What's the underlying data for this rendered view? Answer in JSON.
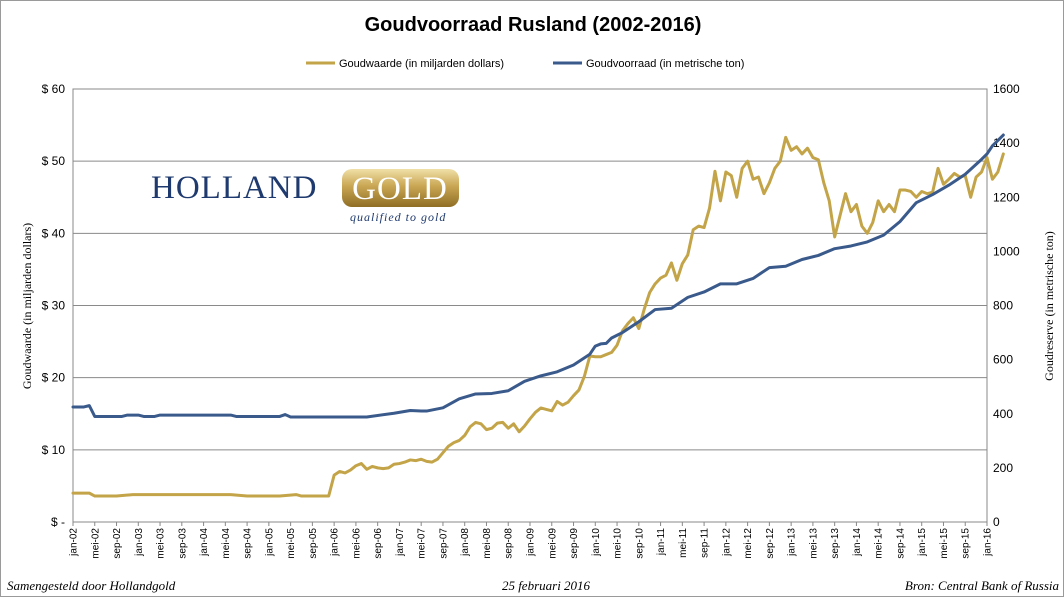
{
  "chart_data": {
    "type": "line",
    "title": "Goudvoorraad Rusland (2002-2016)",
    "ylabel_left": "Goudwaarde  (in miljarden dollars)",
    "ylabel_right": "Goudreserve  (in metrische ton)",
    "ylim_left": [
      0,
      60
    ],
    "ylim_right": [
      0,
      1600
    ],
    "yticks_left": [
      "$ -",
      "$ 10",
      "$ 20",
      "$ 30",
      "$ 40",
      "$ 50",
      "$ 60"
    ],
    "yticks_right": [
      "0",
      "200",
      "400",
      "600",
      "800",
      "1000",
      "1200",
      "1400",
      "1600"
    ],
    "x_start": "2002-01",
    "x_end": "2016-01",
    "x_tick_labels": [
      "jan-02",
      "mei-02",
      "sep-02",
      "jan-03",
      "mei-03",
      "sep-03",
      "jan-04",
      "mei-04",
      "sep-04",
      "jan-05",
      "mei-05",
      "sep-05",
      "jan-06",
      "mei-06",
      "sep-06",
      "jan-07",
      "mei-07",
      "sep-07",
      "jan-08",
      "mei-08",
      "sep-08",
      "jan-09",
      "mei-09",
      "sep-09",
      "jan-10",
      "mei-10",
      "sep-10",
      "jan-11",
      "mei-11",
      "sep-11",
      "jan-12",
      "mei-12",
      "sep-12",
      "jan-13",
      "mei-13",
      "sep-13",
      "jan-14",
      "mei-14",
      "sep-14",
      "jan-15",
      "mei-15",
      "sep-15",
      "jan-16"
    ],
    "grid": true,
    "legend_position": "top",
    "series": [
      {
        "name": "Goudwaarde (in miljarden dollars)",
        "axis": "left",
        "color": "#c3a448",
        "points": [
          [
            "2002-01",
            4.0
          ],
          [
            "2002-04",
            4.0
          ],
          [
            "2002-05",
            3.6
          ],
          [
            "2002-09",
            3.6
          ],
          [
            "2002-12",
            3.8
          ],
          [
            "2003-06",
            3.8
          ],
          [
            "2004-06",
            3.8
          ],
          [
            "2004-09",
            3.6
          ],
          [
            "2005-03",
            3.6
          ],
          [
            "2005-06",
            3.8
          ],
          [
            "2005-07",
            3.6
          ],
          [
            "2005-12",
            3.6
          ],
          [
            "2006-01",
            6.5
          ],
          [
            "2006-02",
            7.0
          ],
          [
            "2006-03",
            6.8
          ],
          [
            "2006-04",
            7.2
          ],
          [
            "2006-05",
            7.8
          ],
          [
            "2006-06",
            8.1
          ],
          [
            "2006-07",
            7.3
          ],
          [
            "2006-08",
            7.7
          ],
          [
            "2006-09",
            7.5
          ],
          [
            "2006-10",
            7.4
          ],
          [
            "2006-11",
            7.5
          ],
          [
            "2006-12",
            8.0
          ],
          [
            "2007-01",
            8.1
          ],
          [
            "2007-02",
            8.3
          ],
          [
            "2007-03",
            8.6
          ],
          [
            "2007-04",
            8.5
          ],
          [
            "2007-05",
            8.7
          ],
          [
            "2007-06",
            8.4
          ],
          [
            "2007-07",
            8.3
          ],
          [
            "2007-08",
            8.7
          ],
          [
            "2007-09",
            9.6
          ],
          [
            "2007-10",
            10.5
          ],
          [
            "2007-11",
            11.0
          ],
          [
            "2007-12",
            11.3
          ],
          [
            "2008-01",
            12.0
          ],
          [
            "2008-02",
            13.2
          ],
          [
            "2008-03",
            13.8
          ],
          [
            "2008-04",
            13.6
          ],
          [
            "2008-05",
            12.8
          ],
          [
            "2008-06",
            13.0
          ],
          [
            "2008-07",
            13.7
          ],
          [
            "2008-08",
            13.8
          ],
          [
            "2008-09",
            13.0
          ],
          [
            "2008-10",
            13.6
          ],
          [
            "2008-11",
            12.5
          ],
          [
            "2008-12",
            13.3
          ],
          [
            "2009-01",
            14.3
          ],
          [
            "2009-02",
            15.2
          ],
          [
            "2009-03",
            15.8
          ],
          [
            "2009-04",
            15.6
          ],
          [
            "2009-05",
            15.4
          ],
          [
            "2009-06",
            16.7
          ],
          [
            "2009-07",
            16.2
          ],
          [
            "2009-08",
            16.6
          ],
          [
            "2009-09",
            17.5
          ],
          [
            "2009-10",
            18.3
          ],
          [
            "2009-11",
            20.2
          ],
          [
            "2009-12",
            23.0
          ],
          [
            "2010-01",
            22.9
          ],
          [
            "2010-02",
            22.9
          ],
          [
            "2010-03",
            23.2
          ],
          [
            "2010-04",
            23.5
          ],
          [
            "2010-05",
            24.5
          ],
          [
            "2010-06",
            26.5
          ],
          [
            "2010-07",
            27.5
          ],
          [
            "2010-08",
            28.3
          ],
          [
            "2010-09",
            26.8
          ],
          [
            "2010-10",
            29.5
          ],
          [
            "2010-11",
            31.8
          ],
          [
            "2010-12",
            33.0
          ],
          [
            "2011-01",
            33.8
          ],
          [
            "2011-02",
            34.2
          ],
          [
            "2011-03",
            35.9
          ],
          [
            "2011-04",
            33.5
          ],
          [
            "2011-05",
            35.8
          ],
          [
            "2011-06",
            37.0
          ],
          [
            "2011-07",
            40.5
          ],
          [
            "2011-08",
            41.0
          ],
          [
            "2011-09",
            40.8
          ],
          [
            "2011-10",
            43.5
          ],
          [
            "2011-11",
            48.6
          ],
          [
            "2011-12",
            44.5
          ],
          [
            "2012-01",
            48.5
          ],
          [
            "2012-02",
            48.0
          ],
          [
            "2012-03",
            45.0
          ],
          [
            "2012-04",
            49.0
          ],
          [
            "2012-05",
            50.0
          ],
          [
            "2012-06",
            47.5
          ],
          [
            "2012-07",
            47.8
          ],
          [
            "2012-08",
            45.5
          ],
          [
            "2012-09",
            47.0
          ],
          [
            "2012-10",
            49.0
          ],
          [
            "2012-11",
            50.0
          ],
          [
            "2012-12",
            53.3
          ],
          [
            "2013-01",
            51.5
          ],
          [
            "2013-02",
            52.0
          ],
          [
            "2013-03",
            51.0
          ],
          [
            "2013-04",
            51.8
          ],
          [
            "2013-05",
            50.5
          ],
          [
            "2013-06",
            50.2
          ],
          [
            "2013-07",
            47.0
          ],
          [
            "2013-08",
            44.5
          ],
          [
            "2013-09",
            39.5
          ],
          [
            "2013-10",
            42.5
          ],
          [
            "2013-11",
            45.5
          ],
          [
            "2013-12",
            43.0
          ],
          [
            "2014-01",
            44.0
          ],
          [
            "2014-02",
            41.0
          ],
          [
            "2014-03",
            40.0
          ],
          [
            "2014-04",
            41.5
          ],
          [
            "2014-05",
            44.5
          ],
          [
            "2014-06",
            43.0
          ],
          [
            "2014-07",
            44.0
          ],
          [
            "2014-08",
            43.0
          ],
          [
            "2014-09",
            46.0
          ],
          [
            "2014-10",
            46.0
          ],
          [
            "2014-11",
            45.8
          ],
          [
            "2014-12",
            45.0
          ],
          [
            "2015-01",
            45.8
          ],
          [
            "2015-02",
            45.5
          ],
          [
            "2015-03",
            45.7
          ],
          [
            "2015-04",
            49.0
          ],
          [
            "2015-05",
            46.8
          ],
          [
            "2015-06",
            47.5
          ],
          [
            "2015-07",
            48.3
          ],
          [
            "2015-08",
            47.8
          ],
          [
            "2015-09",
            48.0
          ],
          [
            "2015-10",
            45.0
          ],
          [
            "2015-11",
            47.8
          ],
          [
            "2015-12",
            48.5
          ],
          [
            "2016-01",
            50.5
          ],
          [
            "2016-02",
            47.5
          ],
          [
            "2016-03",
            48.5
          ],
          [
            "2016-04",
            51.0
          ]
        ]
      },
      {
        "name": "Goudvoorraad (in metrische ton)",
        "axis": "right",
        "color": "#3a5a8c",
        "points": [
          [
            "2002-01",
            425
          ],
          [
            "2002-03",
            425
          ],
          [
            "2002-04",
            430
          ],
          [
            "2002-05",
            390
          ],
          [
            "2002-07",
            390
          ],
          [
            "2002-10",
            390
          ],
          [
            "2002-11",
            395
          ],
          [
            "2003-01",
            395
          ],
          [
            "2003-02",
            390
          ],
          [
            "2003-04",
            390
          ],
          [
            "2003-05",
            395
          ],
          [
            "2004-06",
            395
          ],
          [
            "2004-07",
            390
          ],
          [
            "2005-03",
            390
          ],
          [
            "2005-04",
            397
          ],
          [
            "2005-05",
            388
          ],
          [
            "2006-05",
            388
          ],
          [
            "2006-07",
            388
          ],
          [
            "2006-12",
            402
          ],
          [
            "2007-03",
            412
          ],
          [
            "2007-05",
            410
          ],
          [
            "2007-06",
            410
          ],
          [
            "2007-09",
            422
          ],
          [
            "2007-12",
            455
          ],
          [
            "2008-03",
            473
          ],
          [
            "2008-06",
            475
          ],
          [
            "2008-09",
            485
          ],
          [
            "2008-12",
            520
          ],
          [
            "2009-03",
            540
          ],
          [
            "2009-06",
            555
          ],
          [
            "2009-09",
            580
          ],
          [
            "2009-12",
            620
          ],
          [
            "2010-01",
            650
          ],
          [
            "2010-02",
            658
          ],
          [
            "2010-03",
            660
          ],
          [
            "2010-04",
            680
          ],
          [
            "2010-05",
            690
          ],
          [
            "2010-06",
            700
          ],
          [
            "2010-09",
            740
          ],
          [
            "2010-12",
            785
          ],
          [
            "2011-03",
            790
          ],
          [
            "2011-06",
            830
          ],
          [
            "2011-09",
            850
          ],
          [
            "2011-12",
            880
          ],
          [
            "2012-03",
            880
          ],
          [
            "2012-06",
            900
          ],
          [
            "2012-09",
            940
          ],
          [
            "2012-12",
            945
          ],
          [
            "2013-03",
            970
          ],
          [
            "2013-06",
            985
          ],
          [
            "2013-09",
            1010
          ],
          [
            "2013-12",
            1020
          ],
          [
            "2014-03",
            1035
          ],
          [
            "2014-06",
            1060
          ],
          [
            "2014-09",
            1110
          ],
          [
            "2014-12",
            1180
          ],
          [
            "2015-03",
            1210
          ],
          [
            "2015-06",
            1245
          ],
          [
            "2015-09",
            1285
          ],
          [
            "2015-12",
            1340
          ],
          [
            "2016-01",
            1360
          ],
          [
            "2016-02",
            1390
          ],
          [
            "2016-04",
            1430
          ]
        ]
      }
    ]
  },
  "logo": {
    "word1": "HOLLAND",
    "word2": "GOLD",
    "tagline": "qualified to gold"
  },
  "footer": {
    "left": "Samengesteld door Hollandgold",
    "center": "25 februari 2016",
    "right": "Bron: Central Bank of Russia"
  }
}
